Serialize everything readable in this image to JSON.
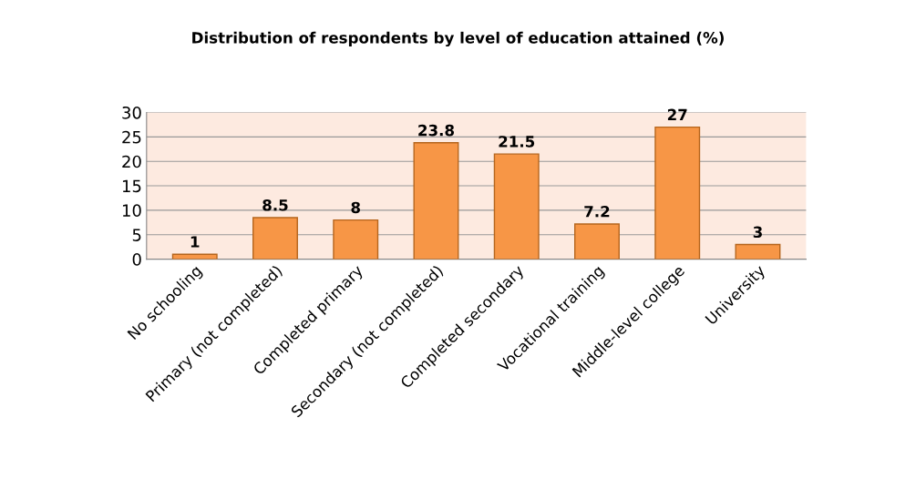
{
  "chart_data": {
    "type": "bar",
    "title": "Distribution of respondents by level of education attained (%)",
    "categories": [
      "No schooling",
      "Primary (not completed)",
      "Completed primary",
      "Secondary (not completed)",
      "Completed secondary",
      "Vocational training",
      "Middle-level college",
      "University"
    ],
    "values": [
      1,
      8.5,
      8,
      23.8,
      21.5,
      7.2,
      27,
      3
    ],
    "color": "#f79646",
    "ylim": [
      0,
      30
    ],
    "yticks": [
      0,
      5,
      10,
      15,
      20,
      25,
      30
    ],
    "grid": "y",
    "data_labels": true
  }
}
